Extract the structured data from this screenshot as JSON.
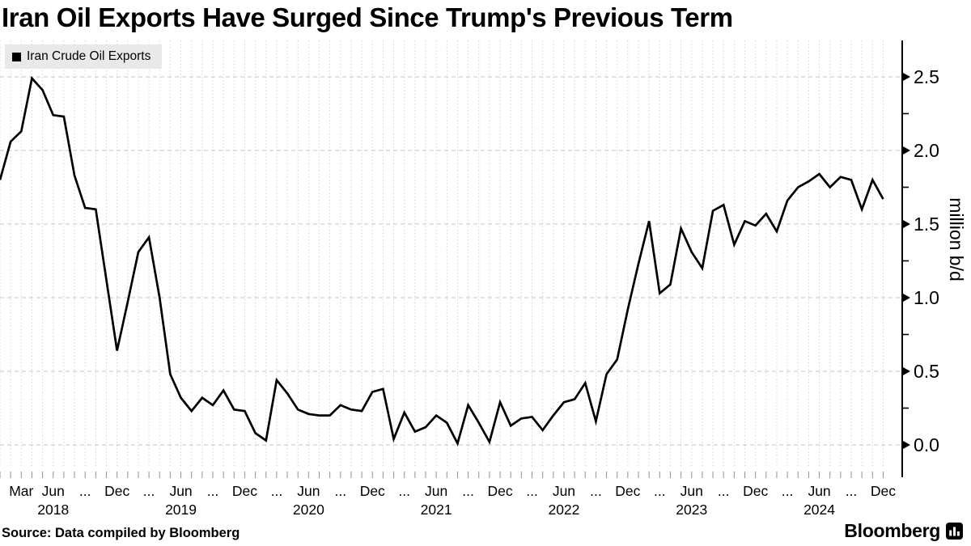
{
  "title": "Iran Oil Exports Have Surged Since Trump's Previous Term",
  "legend": {
    "swatch_color": "#000000",
    "label": "Iran Crude Oil Exports"
  },
  "source_line": "Source: Data compiled by Bloomberg",
  "brand": {
    "wordmark": "Bloomberg",
    "icon": "bloomberg-terminal-bars-icon"
  },
  "colors": {
    "line": "#000000",
    "axis": "#000000",
    "grid_vertical": "#d2d2d2",
    "grid_horizontal": "#c6c6c6",
    "tick_dash": "#8f8f8f",
    "legend_bg": "#e9e9e9",
    "background": "#ffffff"
  },
  "y_axis": {
    "side": "right",
    "title": "million b/d",
    "tick_labels": [
      "0.0",
      "0.5",
      "1.0",
      "1.5",
      "2.0",
      "2.5"
    ],
    "range": [
      0,
      2.5
    ],
    "major_interval": 0.5,
    "minor_interval": 0.25
  },
  "x_axis": {
    "quarter_labels": [
      {
        "m": 2,
        "label": "Mar"
      },
      {
        "m": 5,
        "label": "Jun"
      },
      {
        "m": 8,
        "label": "..."
      },
      {
        "m": 11,
        "label": "Dec"
      },
      {
        "m": 14,
        "label": "..."
      },
      {
        "m": 17,
        "label": "Jun"
      },
      {
        "m": 20,
        "label": "..."
      },
      {
        "m": 23,
        "label": "Dec"
      },
      {
        "m": 26,
        "label": "..."
      },
      {
        "m": 29,
        "label": "Jun"
      },
      {
        "m": 32,
        "label": "..."
      },
      {
        "m": 35,
        "label": "Dec"
      },
      {
        "m": 38,
        "label": "..."
      },
      {
        "m": 41,
        "label": "Jun"
      },
      {
        "m": 44,
        "label": "..."
      },
      {
        "m": 47,
        "label": "Dec"
      },
      {
        "m": 50,
        "label": "..."
      },
      {
        "m": 53,
        "label": "Jun"
      },
      {
        "m": 56,
        "label": "..."
      },
      {
        "m": 59,
        "label": "Dec"
      },
      {
        "m": 62,
        "label": "..."
      },
      {
        "m": 65,
        "label": "Jun"
      },
      {
        "m": 68,
        "label": "..."
      },
      {
        "m": 71,
        "label": "Dec"
      },
      {
        "m": 74,
        "label": "..."
      },
      {
        "m": 77,
        "label": "Jun"
      },
      {
        "m": 80,
        "label": "..."
      },
      {
        "m": 83,
        "label": "Dec"
      }
    ],
    "year_labels": [
      {
        "m": 5,
        "label": "2018"
      },
      {
        "m": 17,
        "label": "2019"
      },
      {
        "m": 29,
        "label": "2020"
      },
      {
        "m": 41,
        "label": "2021"
      },
      {
        "m": 53,
        "label": "2022"
      },
      {
        "m": 65,
        "label": "2023"
      },
      {
        "m": 77,
        "label": "2024"
      }
    ]
  },
  "chart_data": {
    "type": "line",
    "title": "Iran Oil Exports Have Surged Since Trump's Previous Term",
    "unit": "million b/d",
    "ylabel": "million b/d",
    "ylim": [
      0,
      2.5
    ],
    "x_start": "2018-01",
    "x_end": "2024-12",
    "x_freq": "monthly",
    "grid": "horizontal major dashed + vertical monthly dashed",
    "legend_position": "top-left",
    "series": [
      {
        "name": "Iran Crude Oil Exports",
        "color": "#000000",
        "values": [
          1.8,
          2.06,
          2.13,
          2.49,
          2.41,
          2.24,
          2.23,
          1.83,
          1.61,
          1.6,
          1.12,
          0.64,
          0.97,
          1.31,
          1.41,
          1.0,
          0.48,
          0.32,
          0.23,
          0.32,
          0.27,
          0.37,
          0.24,
          0.23,
          0.08,
          0.03,
          0.44,
          0.35,
          0.24,
          0.21,
          0.2,
          0.2,
          0.27,
          0.24,
          0.23,
          0.36,
          0.38,
          0.04,
          0.22,
          0.09,
          0.12,
          0.2,
          0.15,
          0.01,
          0.27,
          0.15,
          0.02,
          0.29,
          0.13,
          0.18,
          0.19,
          0.1,
          0.2,
          0.29,
          0.31,
          0.42,
          0.16,
          0.48,
          0.58,
          0.92,
          1.23,
          1.52,
          1.03,
          1.09,
          1.47,
          1.31,
          1.2,
          1.59,
          1.63,
          1.36,
          1.52,
          1.49,
          1.57,
          1.45,
          1.66,
          1.75,
          1.79,
          1.84,
          1.75,
          1.82,
          1.8,
          1.6,
          1.8,
          1.67
        ]
      }
    ]
  }
}
